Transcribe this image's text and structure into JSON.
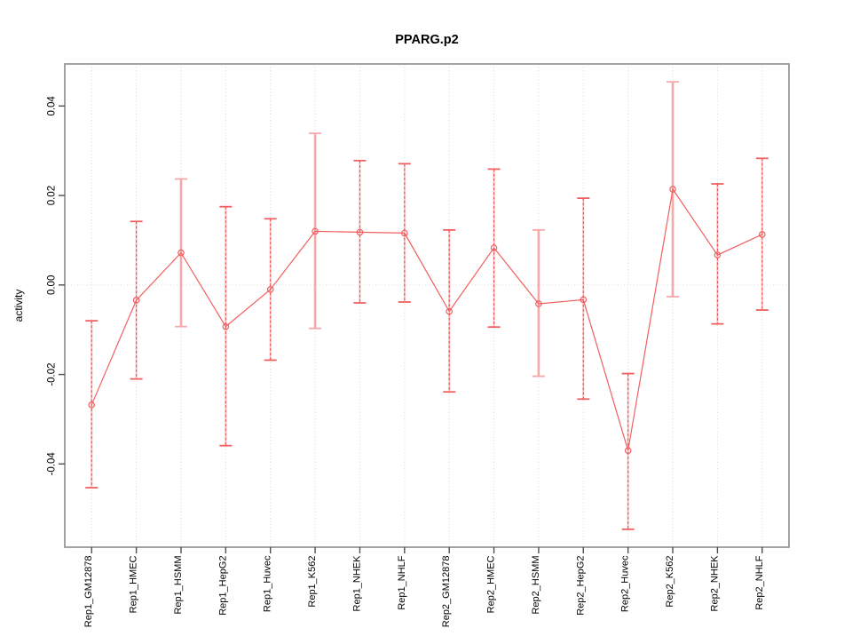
{
  "chart_data": {
    "type": "line",
    "title": "PPARG.p2",
    "ylabel": "activity",
    "xlabel": "",
    "categories": [
      "Rep1_GM12878",
      "Rep1_HMEC",
      "Rep1_HSMM",
      "Rep1_HepG2",
      "Rep1_Huvec",
      "Rep1_K562",
      "Rep1_NHEK",
      "Rep1_NHLF",
      "Rep2_GM12878",
      "Rep2_HMEC",
      "Rep2_HSMM",
      "Rep2_HepG2",
      "Rep2_Huvec",
      "Rep2_K562",
      "Rep2_NHEK",
      "Rep2_NHLF"
    ],
    "series": [
      {
        "name": "activity",
        "values": [
          -0.0268,
          -0.0034,
          0.0072,
          -0.0093,
          -0.001,
          0.012,
          0.0118,
          0.0116,
          -0.0059,
          0.0083,
          -0.0042,
          -0.0033,
          -0.037,
          0.0214,
          0.0067,
          0.0113
        ],
        "lower": [
          -0.0453,
          -0.021,
          -0.0093,
          -0.0359,
          -0.0168,
          -0.0097,
          -0.004,
          -0.0038,
          -0.0239,
          -0.0094,
          -0.0204,
          -0.0255,
          -0.0546,
          -0.0026,
          -0.0087,
          -0.0056
        ],
        "upper": [
          -0.008,
          0.0142,
          0.0237,
          0.0175,
          0.0148,
          0.0339,
          0.0278,
          0.0271,
          0.0123,
          0.0259,
          0.0123,
          0.0194,
          -0.0198,
          0.0454,
          0.0226,
          0.0283
        ]
      }
    ],
    "error_bar_styles": [
      "dash",
      "dash",
      "light",
      "dash",
      "dash",
      "light",
      "dash",
      "dash",
      "dash",
      "dash",
      "light",
      "dash",
      "dash",
      "light",
      "dash",
      "dash"
    ],
    "yticks": [
      -0.04,
      -0.02,
      0,
      0.02,
      0.04
    ],
    "ytick_labels": [
      "-0.04",
      "-0.02",
      "0.00",
      "0.02",
      "0.04"
    ],
    "ylim": [
      -0.0586,
      0.0494
    ],
    "legend": "none",
    "grid": "dotted vertical line per category; dotted horizontal line at zero",
    "marker": "open-circle",
    "colors": {
      "series": "#f25f5f",
      "bar_light": "#f5a9a9",
      "bar_halo": "#f8c6c6",
      "bar_dash": "#ee5252",
      "cap": "#f06060",
      "cap_light": "#f5a9a9",
      "grid": "#dbdbdb",
      "axis": "#8c8c8c",
      "tick": "#4d4d4d",
      "text": "#000000",
      "background": "#ffffff"
    }
  }
}
